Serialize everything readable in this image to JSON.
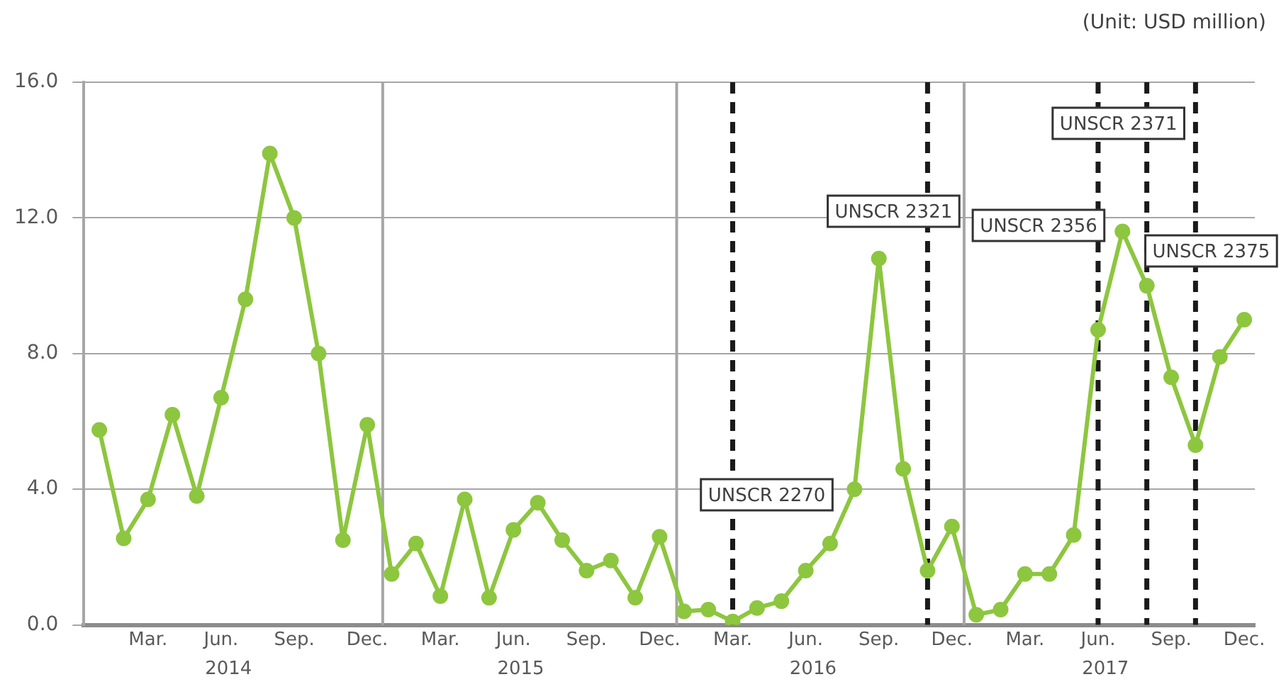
{
  "chart_data": {
    "type": "line",
    "x": [
      "2014-01",
      "2014-02",
      "2014-03",
      "2014-04",
      "2014-05",
      "2014-06",
      "2014-07",
      "2014-08",
      "2014-09",
      "2014-10",
      "2014-11",
      "2014-12",
      "2015-01",
      "2015-02",
      "2015-03",
      "2015-04",
      "2015-05",
      "2015-06",
      "2015-07",
      "2015-08",
      "2015-09",
      "2015-10",
      "2015-11",
      "2015-12",
      "2016-01",
      "2016-02",
      "2016-03",
      "2016-04",
      "2016-05",
      "2016-06",
      "2016-07",
      "2016-08",
      "2016-09",
      "2016-10",
      "2016-11",
      "2016-12",
      "2017-01",
      "2017-02",
      "2017-03",
      "2017-04",
      "2017-05",
      "2017-06",
      "2017-07",
      "2017-08",
      "2017-09",
      "2017-10",
      "2017-11",
      "2017-12"
    ],
    "series": [
      {
        "color": "#8dc63f",
        "values": [
          5.75,
          2.55,
          3.7,
          6.2,
          3.8,
          6.7,
          9.6,
          13.9,
          12.0,
          8.0,
          2.5,
          5.9,
          1.5,
          2.4,
          0.85,
          3.7,
          0.8,
          2.8,
          3.6,
          2.5,
          1.6,
          1.9,
          0.8,
          2.6,
          0.4,
          0.45,
          0.1,
          0.5,
          0.7,
          1.6,
          2.4,
          4.0,
          10.8,
          4.6,
          1.6,
          2.9,
          0.3,
          0.45,
          1.5,
          1.5,
          2.65,
          8.7,
          11.6,
          10.0,
          7.3,
          5.3,
          7.9,
          9.0
        ]
      }
    ],
    "xlim": [
      "2013-12-12",
      "2017-12-14"
    ],
    "xticks": [
      {
        "value": "2014-03",
        "label": "Mar."
      },
      {
        "value": "2014-06",
        "label": "Jun."
      },
      {
        "value": "2014-09",
        "label": "Sep."
      },
      {
        "value": "2014-12",
        "label": "Dec."
      },
      {
        "value": "2015-03",
        "label": "Mar."
      },
      {
        "value": "2015-06",
        "label": "Jun."
      },
      {
        "value": "2015-09",
        "label": "Sep."
      },
      {
        "value": "2015-12",
        "label": "Dec."
      },
      {
        "value": "2016-03",
        "label": "Mar."
      },
      {
        "value": "2016-06",
        "label": "Jun."
      },
      {
        "value": "2016-09",
        "label": "Sep."
      },
      {
        "value": "2016-12",
        "label": "Dec."
      },
      {
        "value": "2017-03",
        "label": "Mar."
      },
      {
        "value": "2017-06",
        "label": "Jun."
      },
      {
        "value": "2017-09",
        "label": "Sep."
      },
      {
        "value": "2017-12",
        "label": "Dec."
      }
    ],
    "x2lim": [
      "2013-12-12",
      "2017-12-14"
    ],
    "x2ticks": [
      {
        "value": "2014-06-10",
        "label": "2014"
      },
      {
        "value": "2015-06-10",
        "label": "2015"
      },
      {
        "value": "2016-06-10",
        "label": "2016"
      },
      {
        "value": "2017-06-10",
        "label": "2017"
      }
    ],
    "ylim": [
      0,
      16
    ],
    "yticks": [
      {
        "value": 0,
        "label": "0.0"
      },
      {
        "value": 4,
        "label": "4.0"
      },
      {
        "value": 8,
        "label": "8.0"
      },
      {
        "value": 12,
        "label": "12.0"
      },
      {
        "value": 16,
        "label": "16.0"
      }
    ],
    "grid": "y",
    "marker": "circle",
    "line_style": "solid",
    "legend": false,
    "ref_lines": [
      {
        "axis": "x",
        "value": "2014-12-20",
        "color": "#a6a6a6",
        "line_style": "solid"
      },
      {
        "axis": "x",
        "value": "2015-12-22",
        "color": "#a6a6a6",
        "line_style": "solid"
      },
      {
        "axis": "x",
        "value": "2016-12-16",
        "color": "#a6a6a6",
        "line_style": "solid"
      },
      {
        "axis": "x",
        "value": "2016-03",
        "label": "UNSCR 2270",
        "color": "#1a1a1a",
        "line_style": "dashed"
      },
      {
        "axis": "x",
        "value": "2016-11",
        "label": "UNSCR 2321",
        "color": "#1a1a1a",
        "line_style": "dashed"
      },
      {
        "axis": "x",
        "value": "2017-06",
        "label": "UNSCR 2356",
        "color": "#1a1a1a",
        "line_style": "dashed"
      },
      {
        "axis": "x",
        "value": "2017-08",
        "label": "UNSCR 2371",
        "color": "#1a1a1a",
        "line_style": "dashed"
      },
      {
        "axis": "x",
        "value": "2017-10",
        "label": "UNSCR 2375",
        "color": "#1a1a1a",
        "line_style": "dashed"
      }
    ],
    "annotations": [
      "(Unit: USD million)"
    ]
  }
}
